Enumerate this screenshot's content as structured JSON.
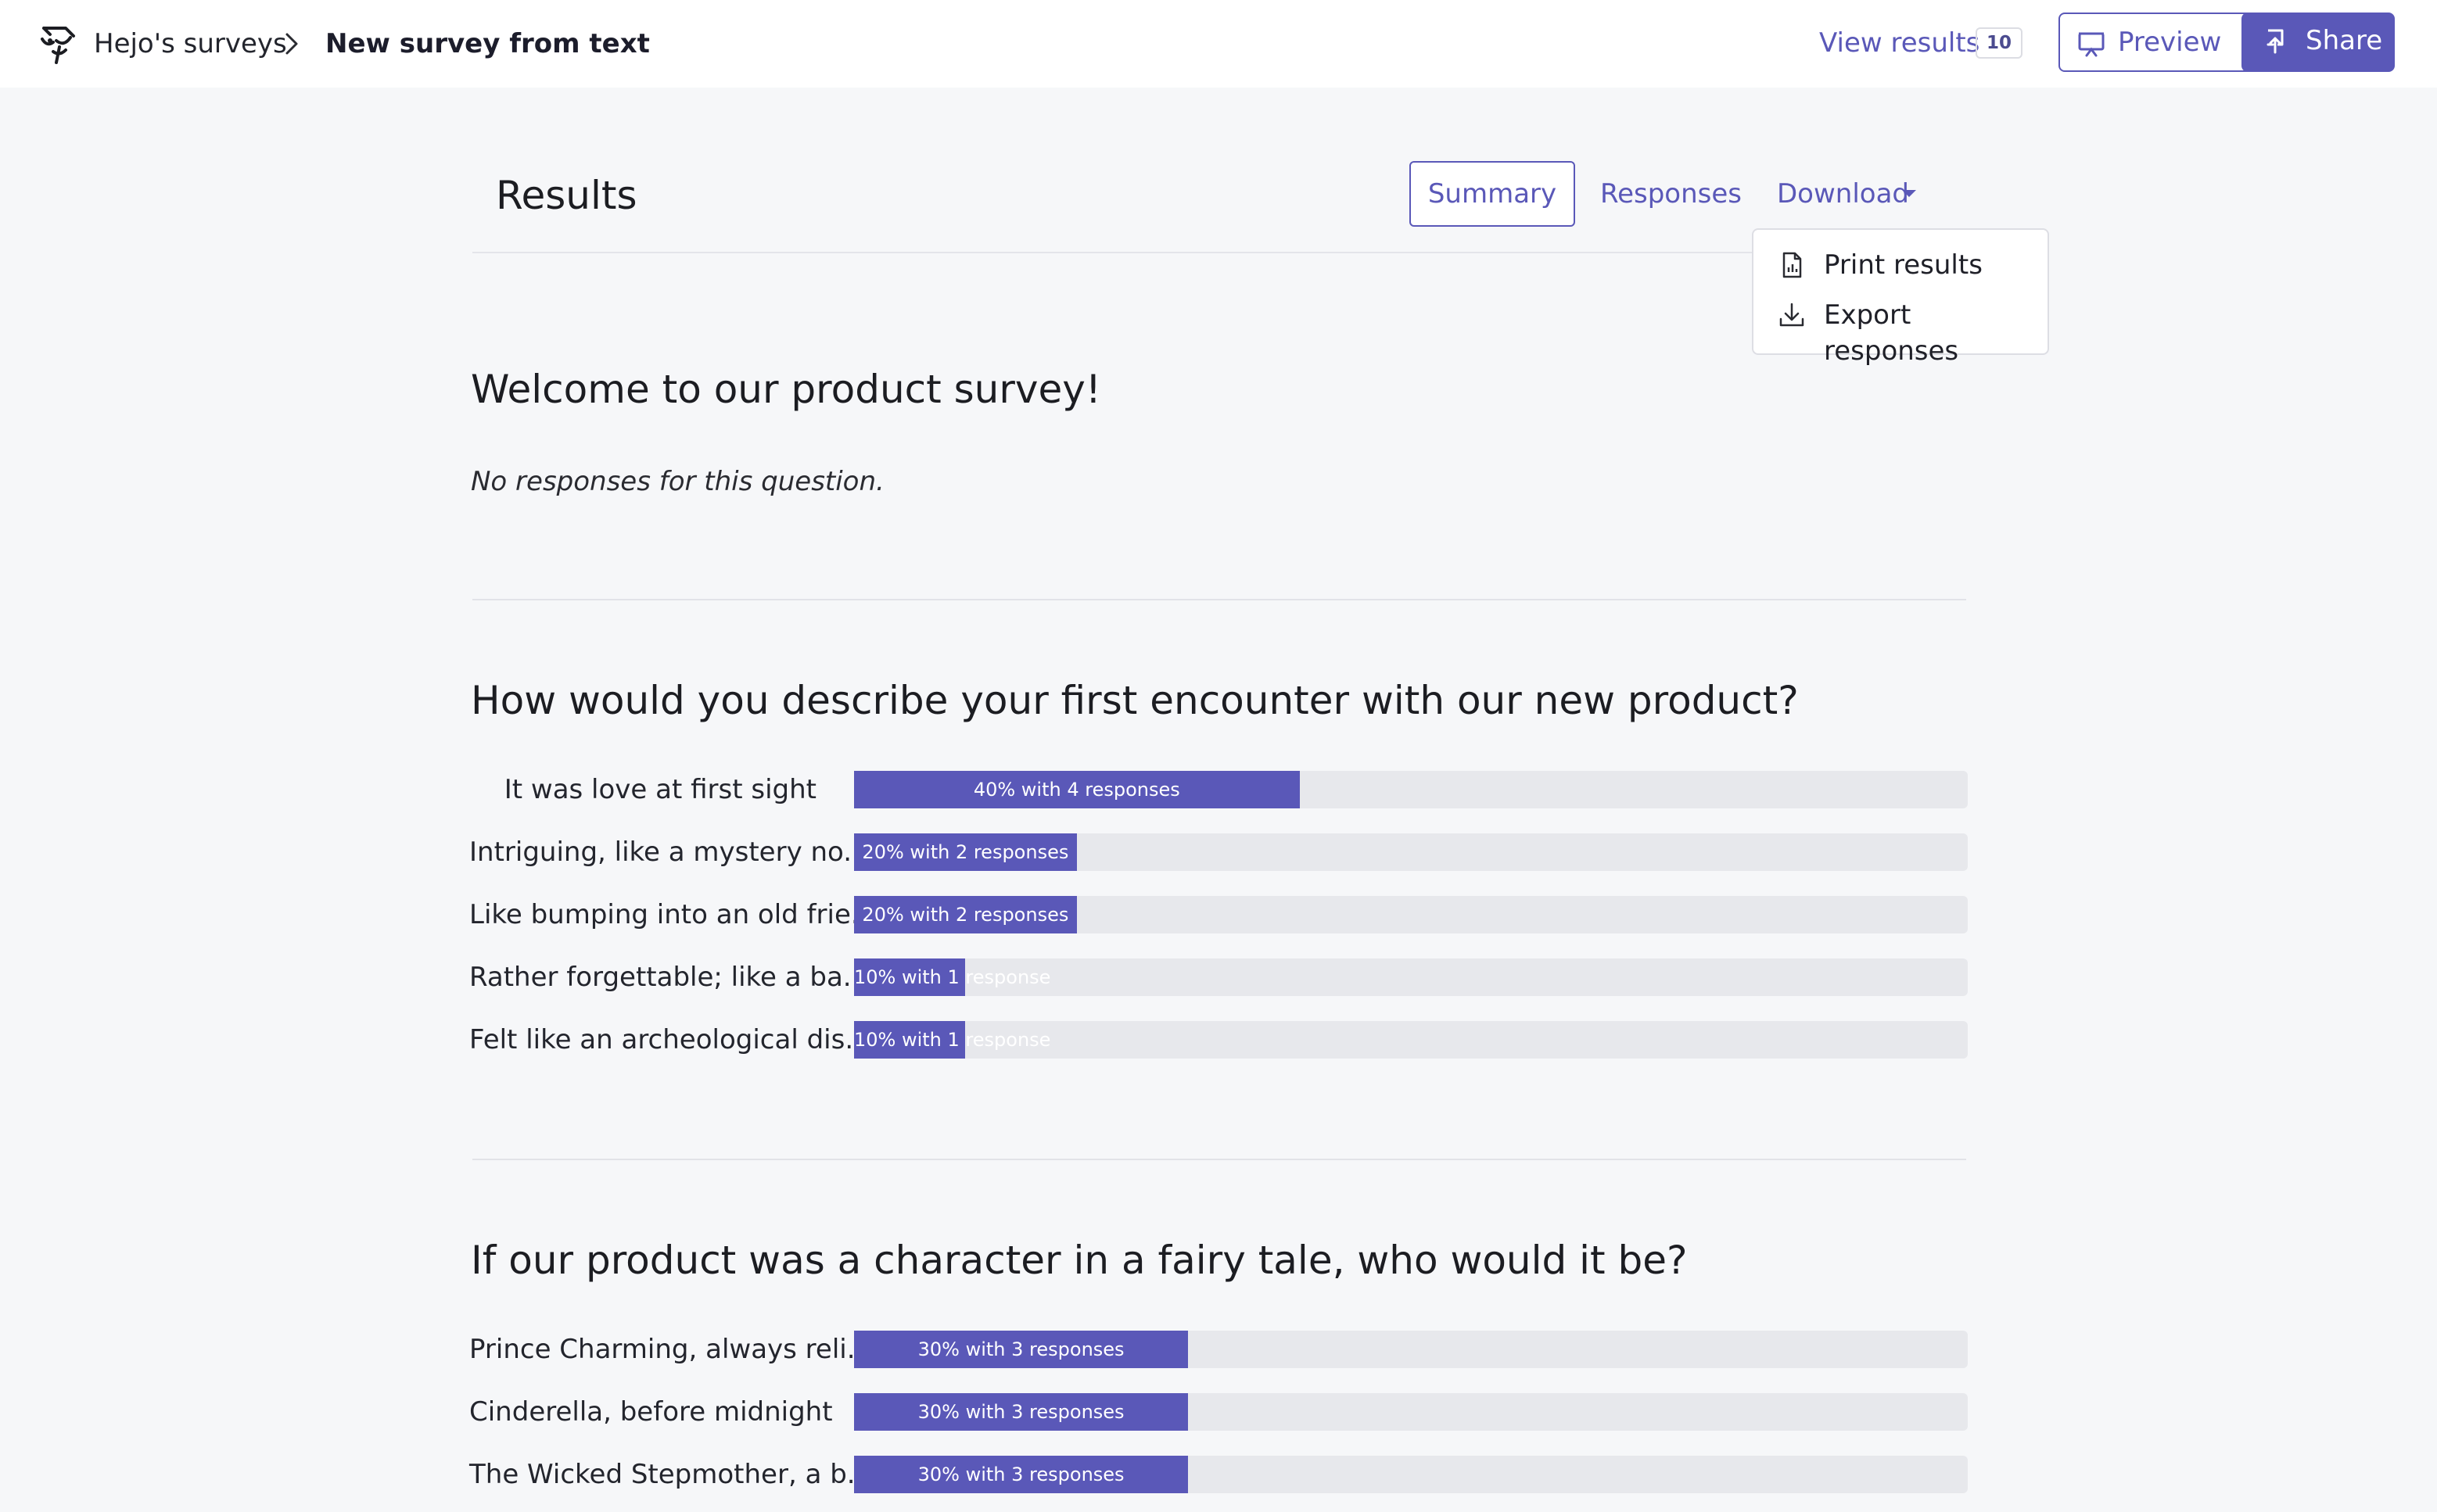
{
  "nav": {
    "breadcrumb_home": "Hejo's surveys",
    "breadcrumb_current": "New survey from text",
    "view_results_label": "View results",
    "results_count": "10",
    "preview_label": "Preview",
    "share_label": "Share",
    "icons": [
      "logo-icon",
      "chevron-right-icon",
      "presentation-icon",
      "share-upload-icon"
    ]
  },
  "results_header": {
    "title": "Results",
    "tabs": {
      "summary": "Summary",
      "responses": "Responses",
      "download": "Download"
    }
  },
  "download_menu": {
    "items": [
      {
        "label": "Print results",
        "icon": "chart-document-icon"
      },
      {
        "label": "Export responses",
        "icon": "download-icon"
      }
    ]
  },
  "questions": [
    {
      "title": "Welcome to our product survey!",
      "empty_message": "No responses for this question."
    },
    {
      "title": "How would you describe your first encounter with our new product?",
      "answers": [
        {
          "label": "It was love at first sight",
          "percent": 40,
          "bar_text": "40% with 4 responses"
        },
        {
          "label": "Intriguing, like a mystery no...",
          "percent": 20,
          "bar_text": "20% with 2 responses"
        },
        {
          "label": "Like bumping into an old frie...",
          "percent": 20,
          "bar_text": "20% with 2 responses"
        },
        {
          "label": "Rather forgettable; like a ba...",
          "percent": 10,
          "bar_text": "10% with 1 response"
        },
        {
          "label": "Felt like an archeological dis...",
          "percent": 10,
          "bar_text": "10% with 1 response"
        }
      ]
    },
    {
      "title": "If our product was a character in a fairy tale, who would it be?",
      "answers": [
        {
          "label": "Prince Charming, always reli...",
          "percent": 30,
          "bar_text": "30% with 3 responses"
        },
        {
          "label": "Cinderella, before midnight",
          "percent": 30,
          "bar_text": "30% with 3 responses"
        },
        {
          "label": "The Wicked Stepmother, a b...",
          "percent": 30,
          "bar_text": "30% with 3 responses"
        }
      ]
    }
  ],
  "colors": {
    "accent": "#5a58b8",
    "track": "#e7e8ec",
    "background": "#f6f7f9"
  }
}
